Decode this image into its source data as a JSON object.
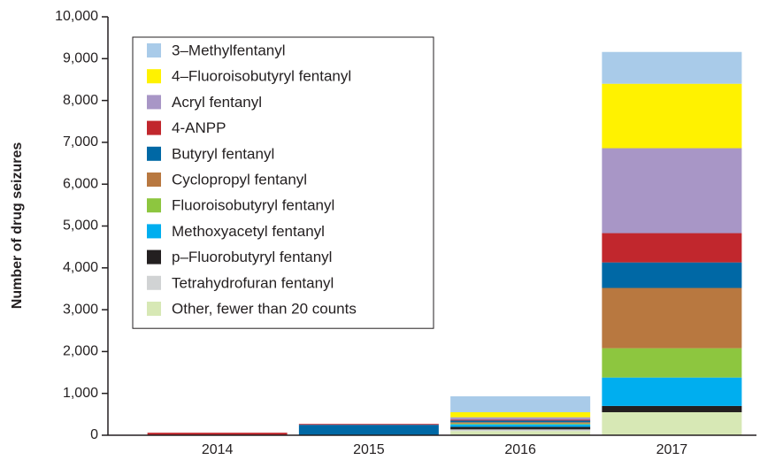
{
  "chart_data": {
    "type": "stacked_bar",
    "ylabel": "Number of drug seizures",
    "categories": [
      "2014",
      "2015",
      "2016",
      "2017"
    ],
    "series": [
      {
        "name": "3–Methylfentanyl",
        "color": "#a9cbe9",
        "values": [
          0,
          0,
          380,
          760
        ]
      },
      {
        "name": "4–Fluoroisobutyryl fentanyl",
        "color": "#fff200",
        "values": [
          0,
          0,
          120,
          1540
        ]
      },
      {
        "name": "Acryl fentanyl",
        "color": "#a896c6",
        "values": [
          0,
          0,
          60,
          2030
        ]
      },
      {
        "name": "4-ANPP",
        "color": "#c1272d",
        "values": [
          60,
          20,
          20,
          700
        ]
      },
      {
        "name": "Butyryl fentanyl",
        "color": "#0068a5",
        "values": [
          0,
          250,
          40,
          610
        ]
      },
      {
        "name": "Cyclopropyl fentanyl",
        "color": "#b87840",
        "values": [
          0,
          0,
          30,
          1440
        ]
      },
      {
        "name": "Fluoroisobutyryl fentanyl",
        "color": "#8dc63f",
        "values": [
          0,
          0,
          20,
          700
        ]
      },
      {
        "name": "Methoxyacetyl fentanyl",
        "color": "#00aeef",
        "values": [
          0,
          0,
          60,
          680
        ]
      },
      {
        "name": "p–Fluorobutyryl fentanyl",
        "color": "#231f20",
        "values": [
          0,
          0,
          60,
          150
        ]
      },
      {
        "name": "Tetrahydrofuran fentanyl",
        "color": "#d1d3d4",
        "values": [
          0,
          0,
          40,
          0
        ]
      },
      {
        "name": "Other, fewer than 20 counts",
        "color": "#d7e8b5",
        "values": [
          0,
          0,
          100,
          550
        ]
      }
    ],
    "ylim": [
      0,
      10000
    ],
    "yticks": [
      0,
      {
        "value": 1000,
        "label": "1,000"
      },
      {
        "value": 2000,
        "label": "2,000"
      },
      {
        "value": 3000,
        "label": "3,000"
      },
      {
        "value": 4000,
        "label": "4,000"
      },
      {
        "value": 5000,
        "label": "5,000"
      },
      {
        "value": 6000,
        "label": "6,000"
      },
      {
        "value": 7000,
        "label": "7,000"
      },
      {
        "value": 8000,
        "label": "8,000"
      },
      {
        "value": 9000,
        "label": "9,000"
      },
      {
        "value": 10000,
        "label": "10,000"
      }
    ],
    "legend": "upper left"
  }
}
